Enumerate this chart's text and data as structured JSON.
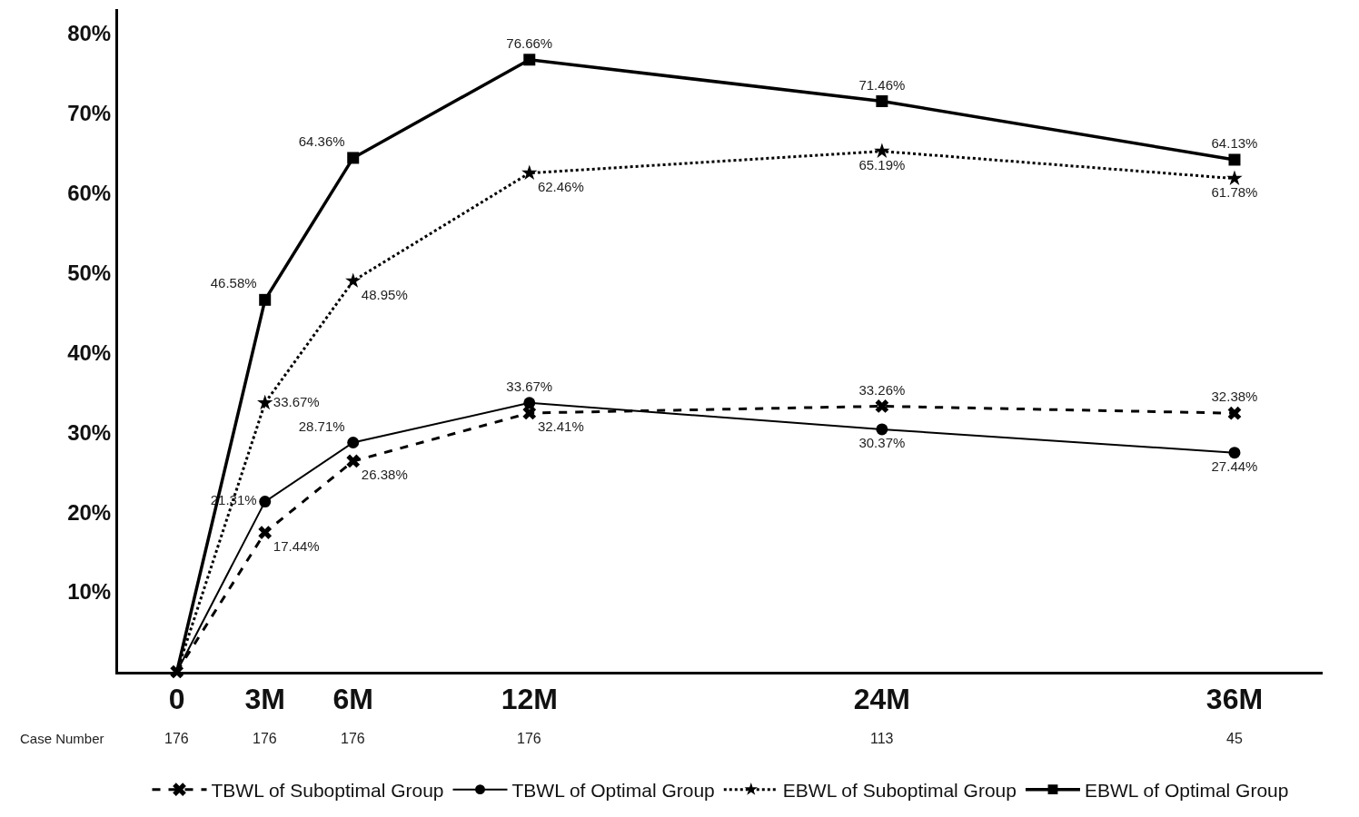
{
  "chart_data": {
    "type": "line",
    "x": [
      0,
      3,
      6,
      12,
      24,
      36
    ],
    "xlim": [
      -2,
      39
    ],
    "xticks": [
      {
        "value": 0,
        "label": "0"
      },
      {
        "value": 3,
        "label": "3M"
      },
      {
        "value": 6,
        "label": "6M"
      },
      {
        "value": 12,
        "label": "12M"
      },
      {
        "value": 24,
        "label": "24M"
      },
      {
        "value": 36,
        "label": "36M"
      }
    ],
    "ylim": [
      0,
      83
    ],
    "yticks": [
      {
        "value": 10,
        "label": "10%"
      },
      {
        "value": 20,
        "label": "20%"
      },
      {
        "value": 30,
        "label": "30%"
      },
      {
        "value": 40,
        "label": "40%"
      },
      {
        "value": 50,
        "label": "50%"
      },
      {
        "value": 60,
        "label": "60%"
      },
      {
        "value": 70,
        "label": "70%"
      },
      {
        "value": 80,
        "label": "80%"
      }
    ],
    "grid": false,
    "legend": "bottom",
    "series": [
      {
        "name": "TBWL of Suboptimal Group",
        "color": "#000000",
        "marker": "cross",
        "line_style": "dashed",
        "values": [
          0,
          17.44,
          26.38,
          32.41,
          33.26,
          32.38
        ],
        "value_labels": [
          null,
          "17.44%",
          "26.38%",
          "32.41%",
          "33.26%",
          "32.38%"
        ]
      },
      {
        "name": "TBWL of Optimal Group",
        "color": "#000000",
        "marker": "circle",
        "line_style": "solid",
        "values": [
          0,
          21.31,
          28.71,
          33.67,
          30.37,
          27.44
        ],
        "value_labels": [
          null,
          "21.31%",
          "28.71%",
          "33.67%",
          "30.37%",
          "27.44%"
        ]
      },
      {
        "name": "EBWL of Suboptimal Group",
        "color": "#000000",
        "marker": "star",
        "line_style": "dotted",
        "values": [
          0,
          33.67,
          48.95,
          62.46,
          65.19,
          61.78
        ],
        "value_labels": [
          null,
          "33.67%",
          "48.95%",
          "62.46%",
          "65.19%",
          "61.78%"
        ]
      },
      {
        "name": "EBWL of Optimal Group",
        "color": "#000000",
        "marker": "square",
        "line_style": "solid",
        "values": [
          0,
          46.58,
          64.36,
          76.66,
          71.46,
          64.13
        ],
        "value_labels": [
          null,
          "46.58%",
          "64.36%",
          "76.66%",
          "71.46%",
          "64.13%"
        ]
      }
    ],
    "annotations": [
      "Case Number",
      "176",
      "176",
      "176",
      "176",
      "113",
      "45"
    ]
  }
}
